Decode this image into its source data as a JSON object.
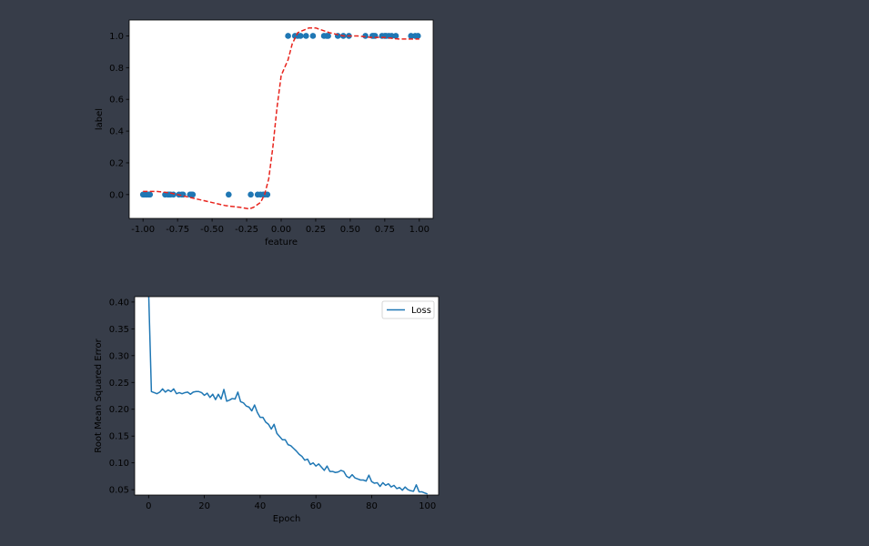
{
  "colors": {
    "background": "#373d49",
    "plot_area": "#ffffff",
    "points": "#1f77b4",
    "fit_curve": "#e8241d",
    "loss_line": "#1f77b4"
  },
  "chart_data": [
    {
      "type": "scatter",
      "xlabel": "feature",
      "ylabel": "label",
      "xlim": [
        -1.1,
        1.1
      ],
      "ylim": [
        -0.15,
        1.1
      ],
      "xticks": [
        -1.0,
        -0.75,
        -0.5,
        -0.25,
        0.0,
        0.25,
        0.5,
        0.75,
        1.0
      ],
      "xtick_labels": [
        "-1.00",
        "-0.75",
        "-0.50",
        "-0.25",
        "0.00",
        "0.25",
        "0.50",
        "0.75",
        "1.00"
      ],
      "yticks": [
        0.0,
        0.2,
        0.4,
        0.6,
        0.8,
        1.0
      ],
      "ytick_labels": [
        "0.0",
        "0.2",
        "0.4",
        "0.6",
        "0.8",
        "1.0"
      ],
      "grid": false,
      "legend": "none",
      "series": [
        {
          "kind": "scatter",
          "points": [
            [
              -1.0,
              0
            ],
            [
              -0.99,
              0
            ],
            [
              -0.98,
              0
            ],
            [
              -0.97,
              0
            ],
            [
              -0.96,
              0
            ],
            [
              -0.95,
              0
            ],
            [
              -0.84,
              0
            ],
            [
              -0.82,
              0
            ],
            [
              -0.81,
              0
            ],
            [
              -0.8,
              0
            ],
            [
              -0.78,
              0
            ],
            [
              -0.74,
              0
            ],
            [
              -0.72,
              0
            ],
            [
              -0.71,
              0
            ],
            [
              -0.66,
              0
            ],
            [
              -0.65,
              0
            ],
            [
              -0.64,
              0
            ],
            [
              -0.38,
              0
            ],
            [
              -0.22,
              0
            ],
            [
              -0.17,
              0
            ],
            [
              -0.15,
              0
            ],
            [
              -0.13,
              0
            ],
            [
              -0.12,
              0
            ],
            [
              -0.1,
              0
            ],
            [
              0.05,
              1
            ],
            [
              0.1,
              1
            ],
            [
              0.12,
              1
            ],
            [
              0.14,
              1
            ],
            [
              0.18,
              1
            ],
            [
              0.23,
              1
            ],
            [
              0.31,
              1
            ],
            [
              0.33,
              1
            ],
            [
              0.34,
              1
            ],
            [
              0.41,
              1
            ],
            [
              0.45,
              1
            ],
            [
              0.49,
              1
            ],
            [
              0.61,
              1
            ],
            [
              0.66,
              1
            ],
            [
              0.67,
              1
            ],
            [
              0.68,
              1
            ],
            [
              0.73,
              1
            ],
            [
              0.75,
              1
            ],
            [
              0.76,
              1
            ],
            [
              0.78,
              1
            ],
            [
              0.8,
              1
            ],
            [
              0.83,
              1
            ],
            [
              0.94,
              1
            ],
            [
              0.97,
              1
            ],
            [
              0.99,
              1
            ]
          ]
        },
        {
          "kind": "dashed-line",
          "points": [
            [
              -1.0,
              0.02
            ],
            [
              -0.9,
              0.02
            ],
            [
              -0.8,
              0.01
            ],
            [
              -0.7,
              -0.01
            ],
            [
              -0.6,
              -0.03
            ],
            [
              -0.5,
              -0.05
            ],
            [
              -0.4,
              -0.07
            ],
            [
              -0.3,
              -0.08
            ],
            [
              -0.23,
              -0.09
            ],
            [
              -0.2,
              -0.08
            ],
            [
              -0.15,
              -0.05
            ],
            [
              -0.12,
              0.0
            ],
            [
              -0.09,
              0.1
            ],
            [
              -0.06,
              0.3
            ],
            [
              -0.03,
              0.55
            ],
            [
              0.0,
              0.75
            ],
            [
              0.05,
              0.85
            ],
            [
              0.08,
              0.95
            ],
            [
              0.12,
              1.02
            ],
            [
              0.2,
              1.05
            ],
            [
              0.25,
              1.05
            ],
            [
              0.35,
              1.02
            ],
            [
              0.45,
              1.0
            ],
            [
              0.55,
              1.0
            ],
            [
              0.65,
              0.99
            ],
            [
              0.75,
              0.99
            ],
            [
              0.85,
              0.98
            ],
            [
              0.95,
              0.98
            ],
            [
              1.0,
              0.98
            ]
          ]
        }
      ]
    },
    {
      "type": "line",
      "xlabel": "Epoch",
      "ylabel": "Root Mean Squared Error",
      "xlim": [
        -5,
        104
      ],
      "ylim": [
        0.04,
        0.41
      ],
      "xticks": [
        0,
        20,
        40,
        60,
        80,
        100
      ],
      "xtick_labels": [
        "0",
        "20",
        "40",
        "60",
        "80",
        "100"
      ],
      "yticks": [
        0.05,
        0.1,
        0.15,
        0.2,
        0.25,
        0.3,
        0.35,
        0.4
      ],
      "ytick_labels": [
        "0.05",
        "0.10",
        "0.15",
        "0.20",
        "0.25",
        "0.30",
        "0.35",
        "0.40"
      ],
      "grid": false,
      "legend": "top-right",
      "series": [
        {
          "name": "Loss",
          "x": [
            0,
            1,
            2,
            3,
            4,
            5,
            6,
            7,
            8,
            9,
            10,
            11,
            12,
            13,
            14,
            15,
            16,
            17,
            18,
            19,
            20,
            21,
            22,
            23,
            24,
            25,
            26,
            27,
            28,
            29,
            30,
            31,
            32,
            33,
            34,
            35,
            36,
            37,
            38,
            39,
            40,
            41,
            42,
            43,
            44,
            45,
            46,
            47,
            48,
            49,
            50,
            51,
            52,
            53,
            54,
            55,
            56,
            57,
            58,
            59,
            60,
            61,
            62,
            63,
            64,
            65,
            66,
            67,
            68,
            69,
            70,
            71,
            72,
            73,
            74,
            75,
            76,
            77,
            78,
            79,
            80,
            81,
            82,
            83,
            84,
            85,
            86,
            87,
            88,
            89,
            90,
            91,
            92,
            93,
            94,
            95,
            96,
            97,
            98,
            99,
            100
          ],
          "values": [
            0.42,
            0.233,
            0.231,
            0.229,
            0.232,
            0.238,
            0.232,
            0.236,
            0.233,
            0.238,
            0.229,
            0.231,
            0.229,
            0.231,
            0.232,
            0.228,
            0.232,
            0.233,
            0.233,
            0.231,
            0.226,
            0.23,
            0.222,
            0.228,
            0.218,
            0.228,
            0.219,
            0.237,
            0.215,
            0.217,
            0.22,
            0.219,
            0.232,
            0.214,
            0.212,
            0.206,
            0.204,
            0.197,
            0.208,
            0.194,
            0.185,
            0.185,
            0.176,
            0.172,
            0.163,
            0.172,
            0.155,
            0.149,
            0.143,
            0.143,
            0.134,
            0.132,
            0.127,
            0.122,
            0.116,
            0.112,
            0.105,
            0.107,
            0.097,
            0.1,
            0.094,
            0.098,
            0.092,
            0.086,
            0.094,
            0.084,
            0.084,
            0.082,
            0.083,
            0.086,
            0.084,
            0.075,
            0.072,
            0.078,
            0.072,
            0.07,
            0.068,
            0.068,
            0.066,
            0.077,
            0.065,
            0.062,
            0.063,
            0.056,
            0.063,
            0.058,
            0.061,
            0.055,
            0.058,
            0.052,
            0.054,
            0.049,
            0.055,
            0.05,
            0.048,
            0.047,
            0.059,
            0.046,
            0.046,
            0.044,
            0.042
          ]
        }
      ]
    }
  ]
}
